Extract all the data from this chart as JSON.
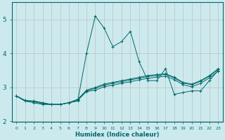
{
  "xlabel": "Humidex (Indice chaleur)",
  "bg_color": "#cceaee",
  "grid_color": "#c0c0c0",
  "line_color": "#006868",
  "xlim": [
    -0.5,
    23.5
  ],
  "ylim": [
    2.0,
    5.5
  ],
  "yticks": [
    2,
    3,
    4,
    5
  ],
  "xticks": [
    0,
    1,
    2,
    3,
    4,
    5,
    6,
    7,
    8,
    9,
    10,
    11,
    12,
    13,
    14,
    15,
    16,
    17,
    18,
    19,
    20,
    21,
    22,
    23
  ],
  "series1_x": [
    0,
    1,
    2,
    3,
    4,
    5,
    6,
    7,
    8,
    9,
    10,
    11,
    12,
    13,
    14,
    15,
    16,
    17,
    18,
    19,
    20,
    21,
    22,
    23
  ],
  "series1_y": [
    2.75,
    2.62,
    2.58,
    2.52,
    2.5,
    2.5,
    2.55,
    2.62,
    2.88,
    2.92,
    3.02,
    3.07,
    3.12,
    3.17,
    3.22,
    3.27,
    3.3,
    3.33,
    3.23,
    3.08,
    3.02,
    3.12,
    3.28,
    3.48
  ],
  "series2_x": [
    0,
    1,
    2,
    3,
    4,
    5,
    6,
    7,
    8,
    9,
    10,
    11,
    12,
    13,
    14,
    15,
    16,
    17,
    18,
    19,
    20,
    21,
    22,
    23
  ],
  "series2_y": [
    2.75,
    2.6,
    2.55,
    2.5,
    2.5,
    2.5,
    2.55,
    2.65,
    2.9,
    2.97,
    3.07,
    3.12,
    3.17,
    3.22,
    3.27,
    3.32,
    3.35,
    3.38,
    3.28,
    3.13,
    3.08,
    3.18,
    3.33,
    3.53
  ],
  "series3_x": [
    0,
    1,
    2,
    3,
    4,
    5,
    6,
    7,
    8,
    9,
    10,
    11,
    12,
    13,
    14,
    15,
    16,
    17,
    18,
    19,
    20,
    21,
    22,
    23
  ],
  "series3_y": [
    2.75,
    2.62,
    2.6,
    2.55,
    2.5,
    2.5,
    2.55,
    2.65,
    2.92,
    3.0,
    3.1,
    3.15,
    3.2,
    3.25,
    3.3,
    3.35,
    3.38,
    3.4,
    3.3,
    3.15,
    3.1,
    3.2,
    3.35,
    3.55
  ],
  "series4_x": [
    0,
    1,
    2,
    3,
    4,
    5,
    6,
    7,
    8,
    9,
    10,
    11,
    12,
    13,
    14,
    15,
    16,
    17,
    18,
    19,
    20,
    21,
    22,
    23
  ],
  "series4_y": [
    2.75,
    2.6,
    2.6,
    2.55,
    2.5,
    2.5,
    2.55,
    2.6,
    4.0,
    5.1,
    4.75,
    4.2,
    4.35,
    4.65,
    3.75,
    3.2,
    3.2,
    3.55,
    2.8,
    2.85,
    2.9,
    2.9,
    3.2,
    3.5
  ]
}
